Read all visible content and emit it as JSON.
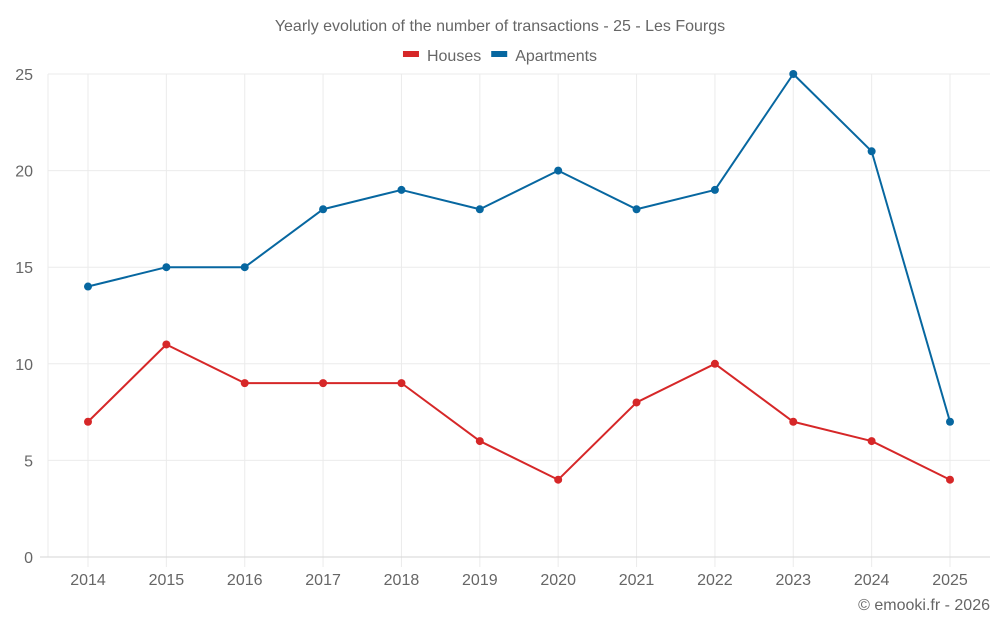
{
  "chart_data": {
    "type": "line",
    "title": "Yearly evolution of the number of transactions - 25 - Les Fourgs",
    "xlabel": "",
    "ylabel": "",
    "x": [
      "2014",
      "2015",
      "2016",
      "2017",
      "2018",
      "2019",
      "2020",
      "2021",
      "2022",
      "2023",
      "2024",
      "2025"
    ],
    "yticks": [
      0,
      5,
      10,
      15,
      20,
      25
    ],
    "ylim": [
      0,
      25
    ],
    "grid": true,
    "legend_position": "top-center",
    "series": [
      {
        "name": "Houses",
        "color": "#d62728",
        "values": [
          7,
          11,
          9,
          9,
          9,
          6,
          4,
          8,
          10,
          7,
          6,
          4
        ]
      },
      {
        "name": "Apartments",
        "color": "#0767a0",
        "values": [
          14,
          15,
          15,
          18,
          19,
          18,
          20,
          18,
          19,
          25,
          21,
          7
        ]
      }
    ],
    "credit": "© emooki.fr - 2026"
  }
}
